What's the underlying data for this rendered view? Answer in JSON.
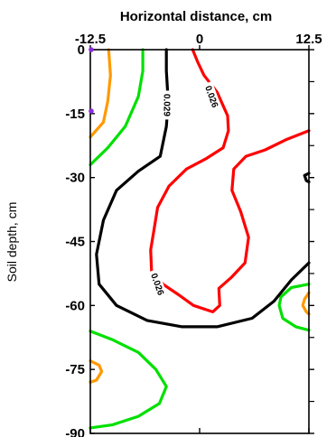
{
  "chart_data": {
    "type": "contour",
    "xlabel": "Horizontal distance, cm",
    "ylabel": "Soil depth, cm",
    "xlim": [
      -12.5,
      12.5
    ],
    "ylim": [
      -90,
      0
    ],
    "x_ticks": [
      -12.5,
      0,
      12.5
    ],
    "y_ticks": [
      0,
      -15,
      -30,
      -45,
      -60,
      -75,
      -90
    ],
    "contour_labels": [
      "0.029",
      "0.026",
      "0.026"
    ],
    "levels": [
      {
        "color": "#ff9900",
        "points": [
          [
            [
              -12.5,
              -20.5
            ],
            [
              -11,
              -17
            ],
            [
              -10.5,
              -12
            ],
            [
              -10.2,
              -6
            ],
            [
              -10.4,
              0
            ]
          ],
          [
            [
              -12.5,
              -73
            ],
            [
              -11.5,
              -74
            ],
            [
              -11.2,
              -75.5
            ],
            [
              -11.8,
              -77.5
            ],
            [
              -12.5,
              -78
            ]
          ],
          [
            [
              12.5,
              -57
            ],
            [
              12,
              -58.5
            ],
            [
              11.8,
              -60
            ],
            [
              12.2,
              -61.5
            ],
            [
              12.5,
              -62
            ]
          ]
        ]
      },
      {
        "color": "#00e000",
        "points": [
          [
            [
              -12.5,
              -27
            ],
            [
              -10.5,
              -23
            ],
            [
              -8.5,
              -18
            ],
            [
              -7,
              -11
            ],
            [
              -6.5,
              -5
            ],
            [
              -6.5,
              0
            ]
          ],
          [
            [
              -12.5,
              -66
            ],
            [
              -10,
              -68
            ],
            [
              -7,
              -71
            ],
            [
              -5,
              -75
            ],
            [
              -3.8,
              -79
            ],
            [
              -4.6,
              -83
            ],
            [
              -7,
              -86
            ],
            [
              -10,
              -88
            ],
            [
              -12.5,
              -88.7
            ]
          ],
          [
            [
              12.5,
              -55
            ],
            [
              10.5,
              -55.8
            ],
            [
              9.3,
              -58
            ],
            [
              9.1,
              -60
            ],
            [
              9.5,
              -63
            ],
            [
              11,
              -65
            ],
            [
              12.5,
              -65.8
            ]
          ]
        ]
      },
      {
        "color": "#000000",
        "points": [
          [
            [
              -3.8,
              0
            ],
            [
              -3.8,
              -5
            ],
            [
              -3.6,
              -12
            ],
            [
              -3.8,
              -18
            ],
            [
              -4.5,
              -25
            ],
            [
              -7,
              -28.5
            ],
            [
              -9.5,
              -33
            ],
            [
              -11,
              -40
            ],
            [
              -11.8,
              -48
            ],
            [
              -11.5,
              -55
            ],
            [
              -9.5,
              -60
            ],
            [
              -6,
              -63.5
            ],
            [
              -2,
              -65
            ],
            [
              2,
              -65
            ],
            [
              6,
              -63
            ],
            [
              8.5,
              -59
            ],
            [
              10.5,
              -54
            ],
            [
              12.5,
              -50
            ]
          ],
          [
            [
              12.5,
              -29
            ],
            [
              12,
              -29.5
            ],
            [
              12.2,
              -30.7
            ],
            [
              12.5,
              -31
            ]
          ]
        ]
      },
      {
        "color": "#ff0000",
        "points": [
          [
            [
              -0.8,
              0
            ],
            [
              -0.2,
              -3
            ],
            [
              0.5,
              -6
            ],
            [
              2,
              -10
            ],
            [
              3.2,
              -15.5
            ],
            [
              3.3,
              -19
            ],
            [
              2.7,
              -23
            ],
            [
              0.8,
              -25.5
            ],
            [
              -1.5,
              -28
            ],
            [
              -3.5,
              -32
            ],
            [
              -4.8,
              -37
            ],
            [
              -5.2,
              -42
            ],
            [
              -5.6,
              -47
            ],
            [
              -5.5,
              -52
            ],
            [
              -4.2,
              -55
            ],
            [
              -2.4,
              -57.5
            ],
            [
              -0.7,
              -60
            ],
            [
              1.5,
              -61.5
            ],
            [
              2.3,
              -60
            ],
            [
              2.2,
              -56
            ],
            [
              3.6,
              -53.5
            ],
            [
              5.2,
              -50
            ],
            [
              5.6,
              -44
            ],
            [
              4.7,
              -38
            ],
            [
              3.7,
              -33
            ],
            [
              3.9,
              -28
            ],
            [
              5.3,
              -25
            ],
            [
              7.5,
              -23.5
            ],
            [
              10,
              -21
            ],
            [
              12.5,
              -19
            ]
          ]
        ]
      }
    ]
  }
}
